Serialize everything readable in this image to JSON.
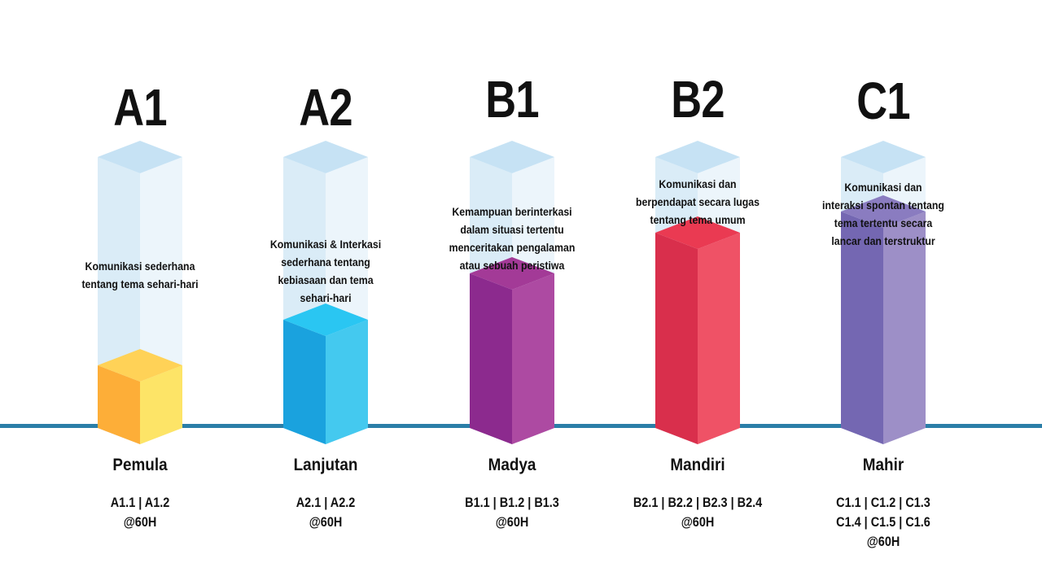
{
  "levels": [
    {
      "code": "A1",
      "name": "Pemula",
      "description": "Komunikasi sederhana\ntentang tema sehari-hari",
      "sub_levels": [
        "A1.1 | A1.2",
        "@60H"
      ],
      "fill_fraction": 0.23,
      "colors": {
        "top": "#ffd257",
        "left": "#fdae38",
        "right": "#fde467"
      }
    },
    {
      "code": "A2",
      "name": "Lanjutan",
      "description": "Komunikasi & Interkasi\nsederhana tentang\nkebiasaan dan tema\nsehari-hari",
      "sub_levels": [
        "A2.1 | A2.2",
        "@60H"
      ],
      "fill_fraction": 0.4,
      "colors": {
        "top": "#2ac6f2",
        "left": "#1aa2de",
        "right": "#44c9ef"
      }
    },
    {
      "code": "B1",
      "name": "Madya",
      "description": "Kemampuan berinterkasi\ndalam situasi tertentu\nmenceritakan pengalaman\natau sebuah peristiwa",
      "sub_levels": [
        "B1.1 | B1.2 | B1.3",
        "@60H"
      ],
      "fill_fraction": 0.57,
      "colors": {
        "top": "#a33a97",
        "left": "#8c2a8e",
        "right": "#ad4aa2"
      }
    },
    {
      "code": "B2",
      "name": "Mandiri",
      "description": "Komunikasi dan\nberpendapat secara lugas\ntentang tema umum",
      "sub_levels": [
        "B2.1 | B2.2 | B2.3 | B2.4",
        "@60H"
      ],
      "fill_fraction": 0.72,
      "colors": {
        "top": "#ea3a52",
        "left": "#d92f4c",
        "right": "#ef5266"
      }
    },
    {
      "code": "C1",
      "name": "Mahir",
      "description": "Komunikasi dan\ninteraksi spontan tentang\ntema tertentu secara\nlancar dan terstruktur",
      "sub_levels": [
        "C1.1 | C1.2 | C1.3",
        "C1.4 | C1.5 | C1.6",
        "@60H"
      ],
      "fill_fraction": 0.8,
      "colors": {
        "top": "#8a7cc0",
        "left": "#7467b2",
        "right": "#9d8fc7"
      }
    }
  ],
  "ghost_colors": {
    "top": "#c6e2f4",
    "left": "#daecf7",
    "right": "#ecf5fb"
  }
}
